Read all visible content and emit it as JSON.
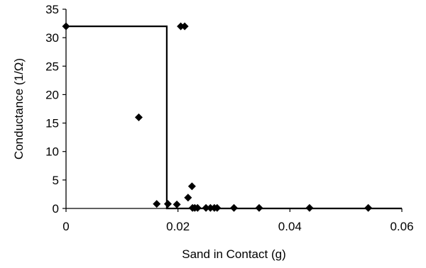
{
  "chart_data": {
    "type": "scatter",
    "title": "",
    "xlabel": "Sand in Contact (g)",
    "ylabel": "Conductance (1/Ω)",
    "xlim": [
      0,
      0.06
    ],
    "ylim": [
      0,
      35
    ],
    "x_ticks": [
      "0",
      "0.02",
      "0.04",
      "0.06"
    ],
    "y_ticks": [
      "0",
      "5",
      "10",
      "15",
      "20",
      "25",
      "30",
      "35"
    ],
    "x_tick_values": [
      0,
      0.02,
      0.04,
      0.06
    ],
    "y_tick_values": [
      0,
      5,
      10,
      15,
      20,
      25,
      30,
      35
    ],
    "grid": false,
    "legend": "none",
    "marker": "diamond",
    "marker_color": "#000000",
    "series": [
      {
        "type": "scatter",
        "points": [
          [
            0.0,
            32.0
          ],
          [
            0.013,
            16.0
          ],
          [
            0.0162,
            0.8
          ],
          [
            0.0182,
            0.8
          ],
          [
            0.0198,
            0.7
          ],
          [
            0.0205,
            32.0
          ],
          [
            0.0212,
            32.0
          ],
          [
            0.0218,
            1.9
          ],
          [
            0.0225,
            3.9
          ],
          [
            0.0226,
            0.1
          ],
          [
            0.023,
            0.1
          ],
          [
            0.0235,
            0.1
          ],
          [
            0.025,
            0.1
          ],
          [
            0.0258,
            0.1
          ],
          [
            0.0265,
            0.1
          ],
          [
            0.027,
            0.1
          ],
          [
            0.03,
            0.1
          ],
          [
            0.0345,
            0.1
          ],
          [
            0.0435,
            0.1
          ],
          [
            0.054,
            0.1
          ]
        ]
      },
      {
        "type": "step-line",
        "line_color": "#000000",
        "points": [
          [
            0.0,
            32.0
          ],
          [
            0.018,
            32.0
          ],
          [
            0.018,
            0.0
          ],
          [
            0.06,
            0.0
          ]
        ]
      }
    ]
  }
}
